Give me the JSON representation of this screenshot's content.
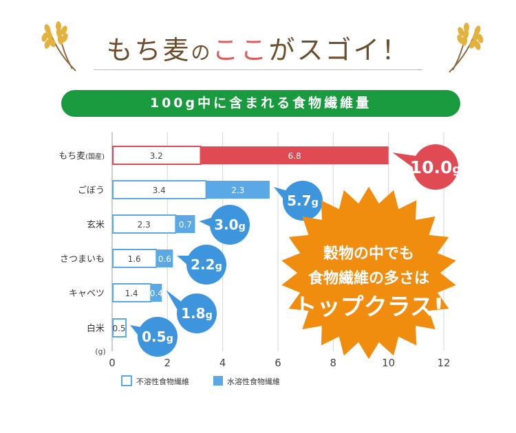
{
  "header": {
    "title_a": "もち麦",
    "title_b": "の",
    "title_c": "ここ",
    "title_d": "がスゴイ！"
  },
  "banner_text": "100g中に含まれる食物繊維量",
  "burst": {
    "line1": "穀物の中でも",
    "line2": "食物繊維の多さは",
    "line3": "トップクラス!"
  },
  "colors": {
    "insoluble_border": "#5aa9e6",
    "soluble_blue": "#5aa9e6",
    "soluble_red": "#e04a52",
    "bubble_blue": "#3c95dd",
    "bubble_red": "#e04a52",
    "burst_orange": "#f08c0e",
    "banner_green": "#1a9a3e"
  },
  "chart_data": {
    "type": "bar",
    "stacked": true,
    "orientation": "horizontal",
    "categories": [
      "もち麦",
      "ごぼう",
      "玄米",
      "さつまいも",
      "キャベツ",
      "白米"
    ],
    "category_suffix": [
      "(国産)",
      "",
      "",
      "",
      "",
      ""
    ],
    "series": [
      {
        "name": "不溶性食物繊維",
        "values": [
          3.2,
          3.4,
          2.3,
          1.6,
          1.4,
          0.5
        ]
      },
      {
        "name": "水溶性食物繊維",
        "values": [
          6.8,
          2.3,
          0.7,
          0.6,
          0.4,
          null
        ]
      }
    ],
    "totals": [
      "10.0g",
      "5.7g",
      "3.0g",
      "2.2g",
      "1.8g",
      "0.5g"
    ],
    "xlim": [
      0,
      12
    ],
    "xticks": [
      0,
      2,
      4,
      6,
      8,
      10,
      12
    ],
    "unit_label": "(g)",
    "grid": true,
    "legend_position": "bottom"
  }
}
